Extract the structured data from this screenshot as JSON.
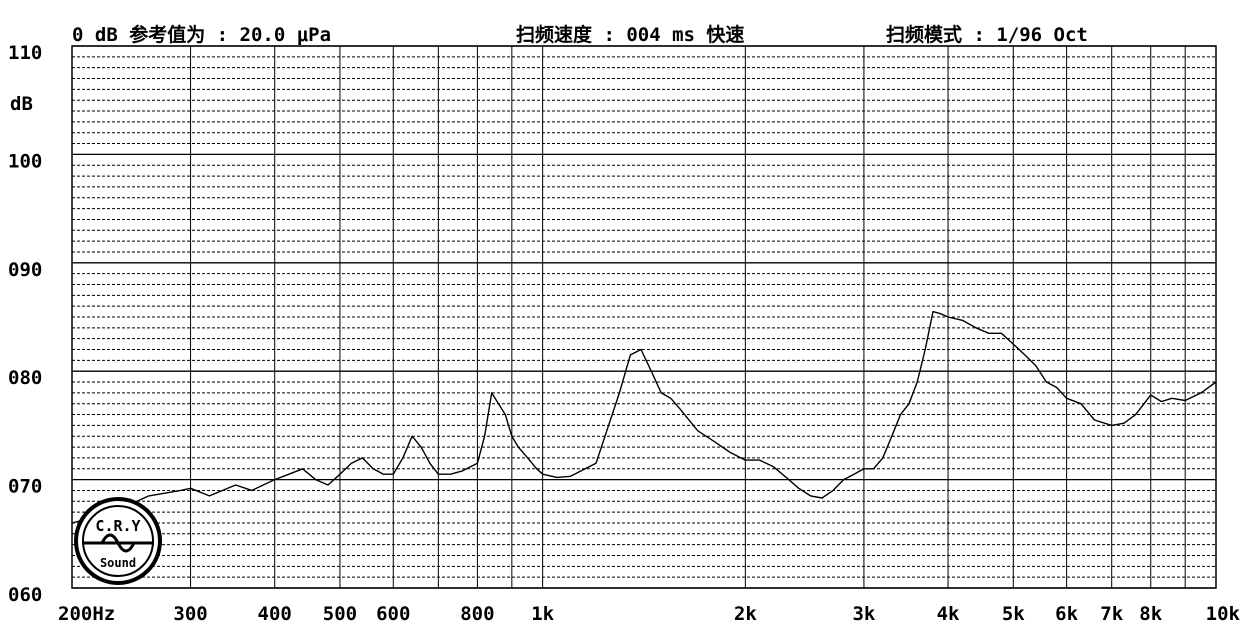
{
  "header": {
    "ref_value": "0 dB 参考值为 : 20.0 μPa",
    "sweep_speed": "扫频速度 : 004 ms 快速",
    "sweep_mode": "扫频模式 : 1/96  Oct"
  },
  "logo": {
    "top_text": "C.R.Y",
    "bottom_text": "Sound"
  },
  "chart_data": {
    "type": "line",
    "ylabel": "dB",
    "ylim": [
      60,
      110
    ],
    "xlim": [
      200,
      10000
    ],
    "x_scale": "log",
    "grid": true,
    "y_ticks": [
      "110",
      "100",
      "090",
      "080",
      "070",
      "060"
    ],
    "x_ticks": [
      {
        "v": 200,
        "label": "200Hz"
      },
      {
        "v": 300,
        "label": "300"
      },
      {
        "v": 400,
        "label": "400"
      },
      {
        "v": 500,
        "label": "500"
      },
      {
        "v": 600,
        "label": "600"
      },
      {
        "v": 800,
        "label": "800"
      },
      {
        "v": 1000,
        "label": "1k"
      },
      {
        "v": 2000,
        "label": "2k"
      },
      {
        "v": 3000,
        "label": "3k"
      },
      {
        "v": 4000,
        "label": "4k"
      },
      {
        "v": 5000,
        "label": "5k"
      },
      {
        "v": 6000,
        "label": "6k"
      },
      {
        "v": 7000,
        "label": "7k"
      },
      {
        "v": 8000,
        "label": "8k"
      },
      {
        "v": 10000,
        "label": "10k"
      }
    ],
    "series": [
      {
        "x": [
          200,
          230,
          260,
          290,
          300,
          320,
          350,
          370,
          400,
          420,
          440,
          460,
          480,
          500,
          520,
          540,
          560,
          580,
          600,
          620,
          640,
          660,
          680,
          700,
          730,
          760,
          800,
          820,
          840,
          860,
          880,
          900,
          920,
          950,
          980,
          1000,
          1050,
          1100,
          1200,
          1300,
          1350,
          1400,
          1450,
          1500,
          1550,
          1600,
          1700,
          1800,
          1900,
          2000,
          2100,
          2200,
          2300,
          2400,
          2500,
          2600,
          2700,
          2800,
          2900,
          3000,
          3100,
          3200,
          3300,
          3400,
          3500,
          3600,
          3700,
          3800,
          3900,
          4000,
          4200,
          4400,
          4600,
          4800,
          5000,
          5200,
          5400,
          5600,
          5800,
          6000,
          6300,
          6600,
          7000,
          7300,
          7600,
          8000,
          8300,
          8600,
          9000,
          9500,
          10000
        ],
        "y": [
          66,
          67,
          68.5,
          69,
          69.2,
          68.5,
          69.5,
          69,
          70,
          70.5,
          71,
          70,
          69.5,
          70.5,
          71.5,
          72,
          71,
          70.5,
          70.5,
          72,
          74,
          73,
          71.5,
          70.5,
          70.5,
          70.8,
          71.5,
          74,
          78,
          77,
          76,
          74,
          73,
          72,
          71,
          70.5,
          70.2,
          70.3,
          71.5,
          78,
          81.5,
          82,
          80,
          78,
          77.5,
          76.5,
          74.5,
          73.5,
          72.5,
          71.8,
          71.8,
          71.2,
          70.2,
          69.2,
          68.5,
          68.3,
          69,
          70,
          70.5,
          71,
          71,
          72,
          74,
          76,
          77,
          79,
          82,
          85.5,
          85.3,
          85,
          84.7,
          84,
          83.5,
          83.5,
          82.5,
          81.5,
          80.5,
          79,
          78.5,
          77.5,
          77,
          75.5,
          75,
          75.2,
          76,
          77.8,
          77.2,
          77.5,
          77.3,
          78,
          79
        ]
      }
    ]
  }
}
